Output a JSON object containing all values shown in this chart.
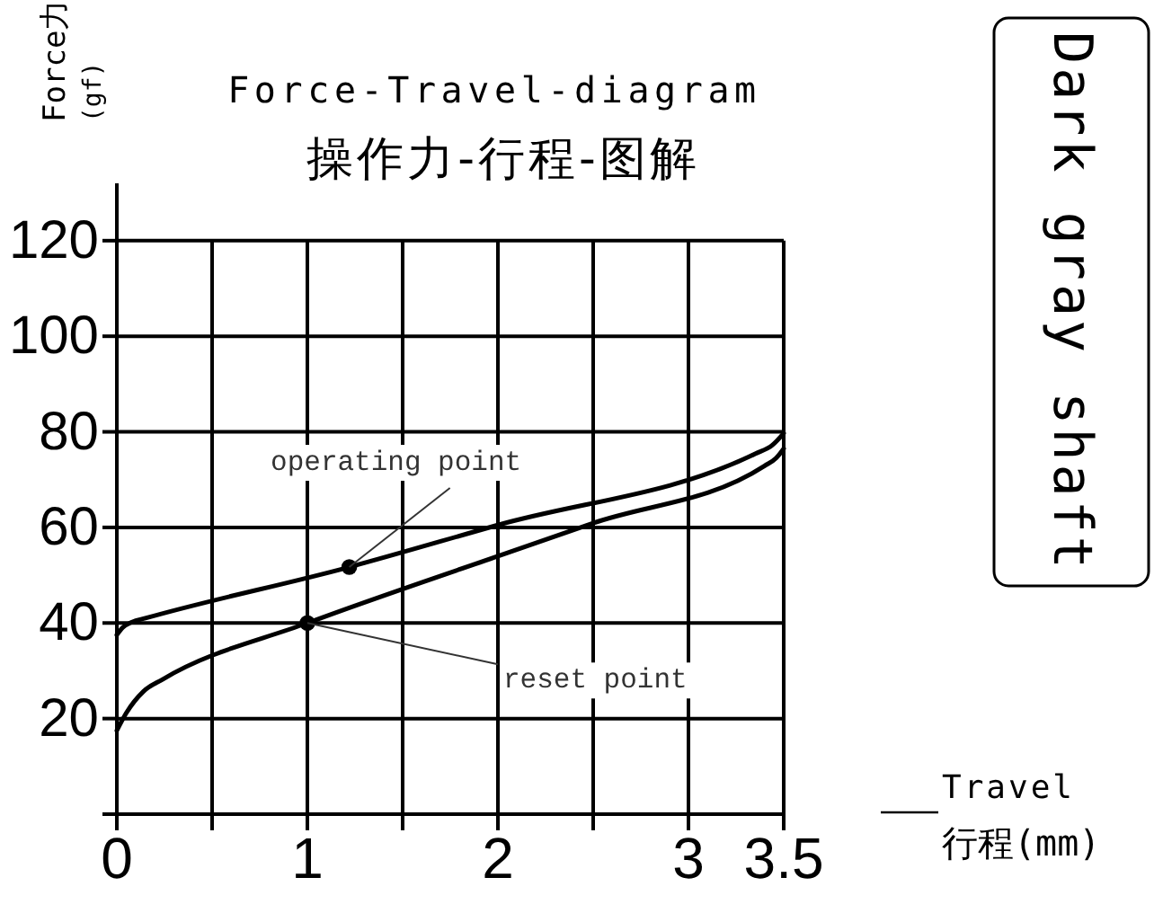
{
  "chart_data": {
    "type": "line",
    "title": "Force-Travel-diagram",
    "subtitle": "操作力-行程-图解",
    "xlabel": "Travel\n行程(mm)",
    "ylabel": "Force力\n(gf)",
    "series": [
      {
        "color": "#000000",
        "x": [
          0,
          0.03,
          0.08,
          0.15,
          1.22,
          2,
          3.35,
          3.44,
          3.5
        ],
        "values": [
          37.5,
          39,
          40.2,
          41,
          51.7,
          60.5,
          75.4,
          77.2,
          79.7
        ]
      },
      {
        "color": "#000000",
        "x": [
          0,
          0.05,
          0.14,
          0.24,
          1,
          2,
          2.5,
          3.4,
          3.46,
          3.5
        ],
        "values": [
          17.5,
          21.2,
          25.7,
          28.2,
          40,
          54,
          60.9,
          72.9,
          74.5,
          76.5
        ]
      },
      {
        "type": "scatter",
        "color": "#000000",
        "marker": "circle",
        "x": [
          1.22,
          1
        ],
        "values": [
          51.7,
          40
        ]
      }
    ],
    "xlim": [
      0,
      3.5
    ],
    "xticks": [
      0,
      {
        "value": 0.5,
        "label": null
      },
      1,
      {
        "value": 1.5,
        "label": null
      },
      2,
      {
        "value": 2.5,
        "label": null
      },
      3,
      3.5
    ],
    "ylim": [
      0,
      132
    ],
    "yticks": [
      {
        "value": 0,
        "label": null
      },
      20,
      40,
      60,
      80,
      100,
      120
    ],
    "grid": true,
    "annotations": [
      {
        "text": "operating point",
        "x": 1.22,
        "y": 51.7
      },
      {
        "text": "reset point",
        "x": 1,
        "y": 40
      },
      "Dark gray shaft"
    ]
  }
}
